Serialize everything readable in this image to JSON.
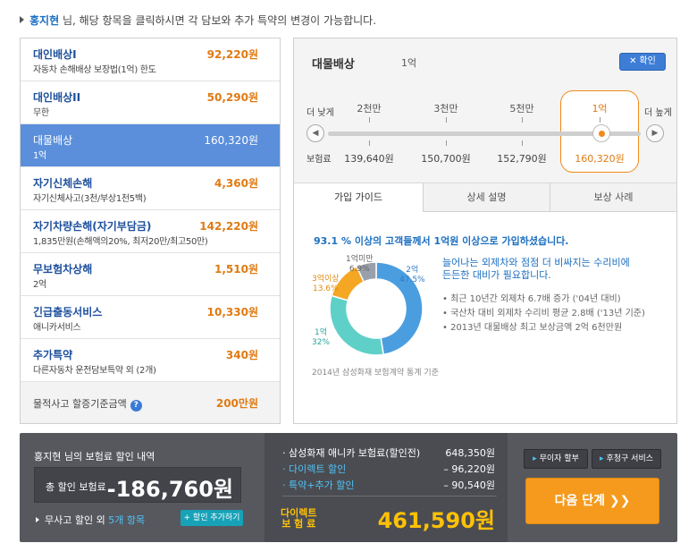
{
  "header": {
    "name": "홍지현",
    "text": " 님, 해당 항목을 클릭하시면 각 담보와 추가 특약의 변경이 가능합니다."
  },
  "coverages": [
    {
      "title": "대인배상I",
      "sub": "자동차 손해배상 보장법(1억) 한도",
      "price": "92,220원"
    },
    {
      "title": "대인배상II",
      "sub": "무한",
      "price": "50,290원"
    },
    {
      "title": "대물배상",
      "sub": "1억",
      "price": "160,320원"
    },
    {
      "title": "자기신체손해",
      "sub": "자기신체사고(3천/부상1천5백)",
      "price": "4,360원"
    },
    {
      "title": "자기차량손해(자기부담금)",
      "sub": "1,835만원(손해액의20%, 최저20만/최고50만)",
      "price": "142,220원"
    },
    {
      "title": "무보험차상해",
      "sub": "2억",
      "price": "1,510원"
    },
    {
      "title": "긴급출동서비스",
      "sub": "애니카서비스",
      "price": "10,330원"
    },
    {
      "title": "추가특약",
      "sub": "다른자동차 운전담보특약 외 (2개)",
      "price": "340원"
    }
  ],
  "accident": {
    "label": "물적사고 할증기준금액",
    "help": "?",
    "value": "200만원"
  },
  "detail": {
    "title": "대물배상",
    "amount": "1억",
    "close_label": "확인",
    "close_x": "✕",
    "lower_label": "더 낮게",
    "higher_label": "더 높게",
    "premium_label": "보험료",
    "prev": "◀",
    "next": "▶",
    "options": [
      {
        "coverage": "2천만",
        "premium": "139,640원"
      },
      {
        "coverage": "3천만",
        "premium": "150,700원"
      },
      {
        "coverage": "5천만",
        "premium": "152,790원"
      },
      {
        "coverage": "1억",
        "premium": "160,320원"
      }
    ],
    "selected_index": 3
  },
  "tabs": [
    "가입 가이드",
    "상세 설명",
    "보상 사례"
  ],
  "guide": {
    "headline": "93.1 % 이상의 고객들께서 1억원 이상으로 가입하셨습니다.",
    "desc_line1": "늘어나는 외제차와 점점 더 비싸지는 수리비에",
    "desc_line2": "든든한 대비가 필요합니다.",
    "bullets": [
      "최근 10년간 외제차 6.7배 증가 ('04년 대비)",
      "국산차 대비 외제차 수리비 평균 2.8배 ('13년 기준)",
      "2013년 대물배상 최고 보상금액 2억 6천만원"
    ],
    "source": "2014년 삼성화재 보험계약 통계 기준"
  },
  "chart_data": {
    "type": "pie",
    "title": "",
    "categories": [
      "2억",
      "1억",
      "3억이상",
      "1억미만"
    ],
    "values": [
      47.5,
      32,
      13.6,
      6.9
    ],
    "labels": [
      "47.5%",
      "32%",
      "13.6%",
      "6.9%"
    ],
    "colors": [
      "#4a9ee0",
      "#5fd0c8",
      "#f5a623",
      "#9aa0ab"
    ]
  },
  "summary": {
    "title": "홍지현 님의 보험료 할인 내역",
    "discount_label": "총 할인 보험료",
    "discount_value": "-186,760원",
    "extra_prefix": "무사고 할인 외 ",
    "extra_count": "5개 항목",
    "add_discount": "+ 할인 추가하기",
    "rows": [
      {
        "label": "삼성화재 애니카 보험료(할인전)",
        "value": "648,350원"
      },
      {
        "label": "다이렉트 할인",
        "value": "– 96,220원"
      },
      {
        "label": "특약+추가 할인",
        "value": "– 90,540원"
      }
    ],
    "direct_label_1": "다이렉트",
    "direct_label_2": "보 험 료",
    "direct_value": "461,590원",
    "btn_installment": "무이자 할부",
    "btn_service": "후청구 서비스",
    "btn_arrow": "▸",
    "next_label": "다음 단계  ❯❯"
  },
  "colors": {
    "accent": "#1c6fc0",
    "price": "#e07a12",
    "selected_row": "#5b8fdb",
    "orange": "#f59a1d",
    "yellow": "#ffc107",
    "cyan": "#4fc3f7"
  }
}
